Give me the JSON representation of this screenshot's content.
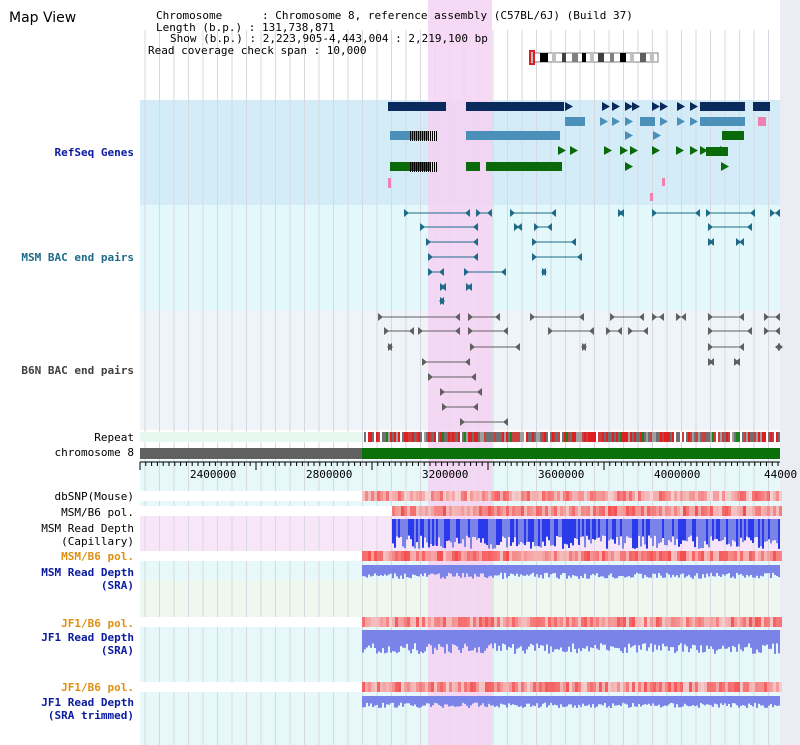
{
  "view": {
    "title": "Map View"
  },
  "info": {
    "chromosome": "Chromosome      : Chromosome 8, reference assembly (C57BL/6J) (Build 37)",
    "length": "Length (b.p.) : 131,738,871",
    "show": "Show (b.p.) : 2,223,905-4,443,004 : 2,219,100 bp",
    "coverage": "Read coverage check span : 10,000"
  },
  "tracks": {
    "refseq": "RefSeq Genes",
    "msm_bac": "MSM BAC end pairs",
    "b6n_bac": "B6N BAC end pairs",
    "repeat": "Repeat",
    "chromosome": "chromosome 8",
    "dbsnp": "dbSNP(Mouse)",
    "msm_pol_1": "MSM/B6 pol.",
    "msm_depth_cap": "MSM Read Depth\n(Capillary)",
    "msm_pol_2": "MSM/B6 pol.",
    "msm_depth_sra": "MSM Read Depth\n(SRA)",
    "jf1_pol_1": "JF1/B6 pol.",
    "jf1_depth_sra": "JF1 Read Depth\n(SRA)",
    "jf1_pol_2": "JF1/B6 pol.",
    "jf1_depth_trim": "JF1 Read Depth\n(SRA trimmed)"
  },
  "axis": {
    "ticks": [
      "2400000",
      "2800000",
      "3200000",
      "3600000",
      "4000000",
      "44000"
    ]
  },
  "colors": {
    "highlight": "#f4d2f2",
    "refseq_bg": "#d4ecf8",
    "msm_bg": "#e2f8fa",
    "b6n_bg": "#eef4f8",
    "gene_navy": "#0a2a5e",
    "gene_steel": "#4a90b8",
    "gene_green": "#0a6a0a",
    "chrom_gray": "#606060",
    "chrom_green": "#0a700a",
    "depth_blue": "#2a3ae8",
    "depth_light": "#7a84e8",
    "snp_pink": "#f4a8a8"
  }
}
